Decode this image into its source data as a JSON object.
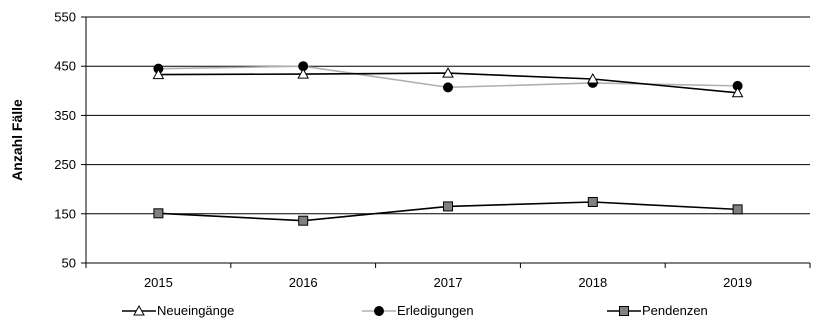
{
  "chart_data": {
    "type": "line",
    "title": "",
    "xlabel": "",
    "ylabel": "Anzahl Fälle",
    "categories": [
      "2015",
      "2016",
      "2017",
      "2018",
      "2019"
    ],
    "ylim": [
      50,
      550
    ],
    "yticks": [
      50,
      150,
      250,
      350,
      450,
      550
    ],
    "grid": "horizontal",
    "legend_position": "bottom",
    "series": [
      {
        "name": "Neueingänge",
        "values": [
          433,
          434,
          436,
          424,
          396
        ],
        "color": "#000000",
        "marker": "open-triangle"
      },
      {
        "name": "Erledigungen",
        "values": [
          445,
          450,
          407,
          416,
          410
        ],
        "color": "#b0b0b0",
        "marker": "filled-circle"
      },
      {
        "name": "Pendenzen",
        "values": [
          151,
          136,
          165,
          174,
          159
        ],
        "color": "#000000",
        "marker": "grey-square"
      }
    ]
  }
}
